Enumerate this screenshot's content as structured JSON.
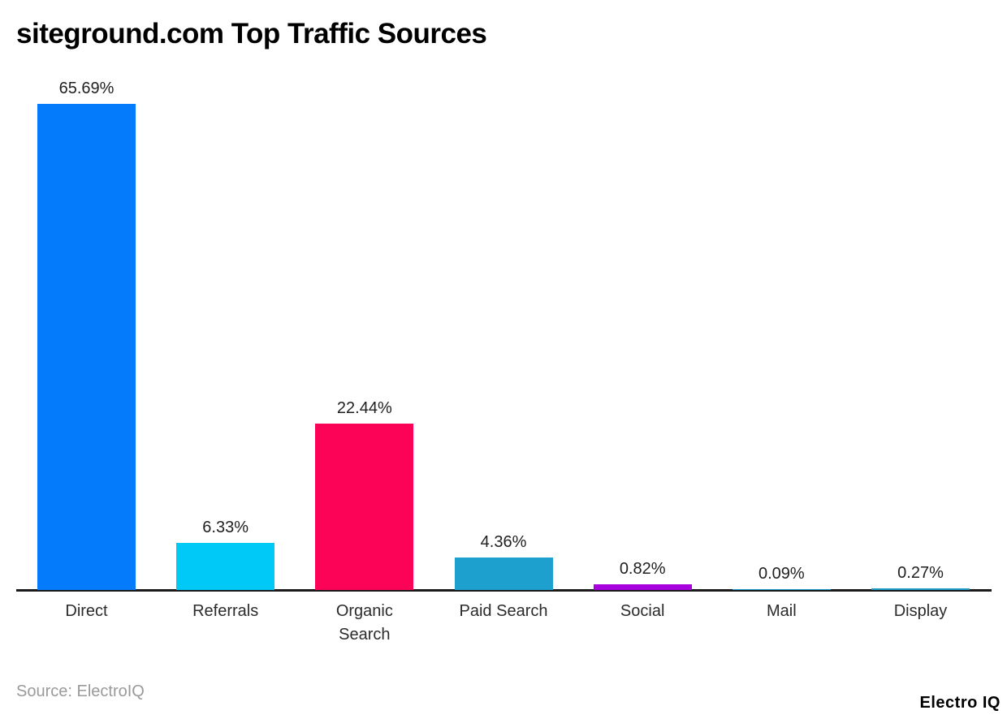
{
  "chart_data": {
    "type": "bar",
    "title": "siteground.com Top Traffic Sources",
    "categories": [
      "Direct",
      "Referrals",
      "Organic Search",
      "Paid Search",
      "Social",
      "Mail",
      "Display"
    ],
    "category_display": [
      "Direct",
      "Referrals",
      "Organic\nSearch",
      "Paid Search",
      "Social",
      "Mail",
      "Display"
    ],
    "values": [
      65.69,
      6.33,
      22.44,
      4.36,
      0.82,
      0.09,
      0.27
    ],
    "value_labels": [
      "65.69%",
      "6.33%",
      "22.44%",
      "4.36%",
      "0.82%",
      "0.09%",
      "0.27%"
    ],
    "bar_colors": [
      "#047bfa",
      "#00c8f7",
      "#fd0357",
      "#1da0ce",
      "#a802de",
      "#1da0ce",
      "#1da0ce"
    ],
    "xlabel": "",
    "ylabel": "",
    "ylim": [
      0,
      65.69
    ],
    "grid": false,
    "legend": "none",
    "axis_color": "#1a1a1a",
    "value_label_color": "#1f1f1f",
    "category_label_color": "#2b2b2b"
  },
  "footer": {
    "source": "Source: ElectroIQ",
    "brand": "Electro IQ"
  }
}
